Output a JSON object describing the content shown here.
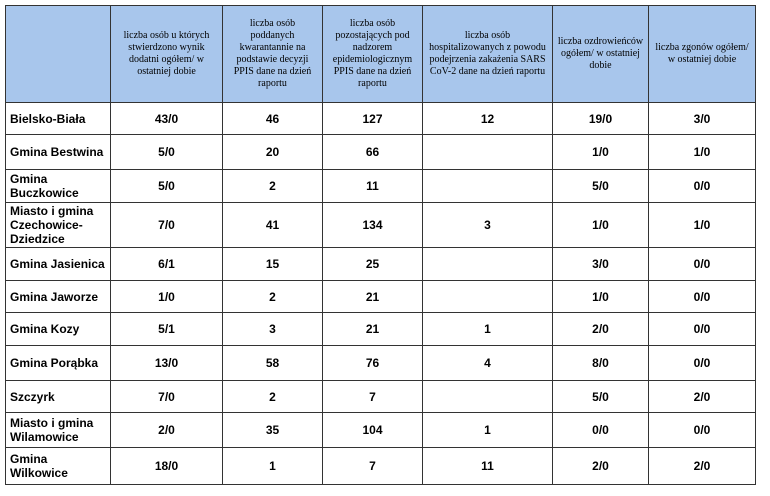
{
  "table": {
    "header": [
      "liczba osób u których stwierdzono wynik dodatni ogółem/ w ostatniej dobie",
      "liczba osób poddanych kwarantannie na podstawie decyzji PPIS dane na dzień raportu",
      "liczba osób pozostających pod nadzorem epidemiologicznym PPIS dane na dzień raportu",
      "liczba osób hospitalizowanych z powodu podejrzenia zakażenia SARS CoV-2 dane na dzień raportu",
      "liczba ozdrowieńców ogółem/ w ostatniej dobie",
      "liczba zgonów ogółem/ w ostatniej dobie"
    ],
    "rows": [
      [
        "Bielsko-Biała",
        "43/0",
        "46",
        "127",
        "12",
        "19/0",
        "3/0"
      ],
      [
        "Gmina Bestwina",
        "5/0",
        "20",
        "66",
        null,
        "1/0",
        "1/0"
      ],
      [
        "Gmina Buczkowice",
        "5/0",
        "2",
        "11",
        null,
        "5/0",
        "0/0"
      ],
      [
        "Miasto i gmina Czechowice-Dziedzice",
        "7/0",
        "41",
        "134",
        "3",
        "1/0",
        "1/0"
      ],
      [
        "Gmina Jasienica",
        "6/1",
        "15",
        "25",
        null,
        "3/0",
        "0/0"
      ],
      [
        "Gmina Jaworze",
        "1/0",
        "2",
        "21",
        null,
        "1/0",
        "0/0"
      ],
      [
        "Gmina Kozy",
        "5/1",
        "3",
        "21",
        "1",
        "2/0",
        "0/0"
      ],
      [
        "Gmina Porąbka",
        "13/0",
        "58",
        "76",
        "4",
        "8/0",
        "0/0"
      ],
      [
        "Szczyrk",
        "7/0",
        "2",
        "7",
        null,
        "5/0",
        "2/0"
      ],
      [
        "Miasto i gmina Wilamowice",
        "2/0",
        "35",
        "104",
        "1",
        "0/0",
        "0/0"
      ],
      [
        "Gmina Wilkowice",
        "18/0",
        "1",
        "7",
        "11",
        "2/0",
        "2/0"
      ]
    ]
  }
}
